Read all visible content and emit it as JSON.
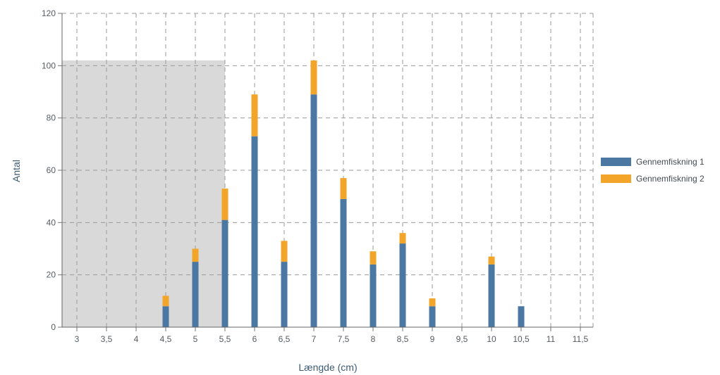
{
  "chart_data": {
    "type": "bar",
    "stacked": true,
    "xlabel": "Længde (cm)",
    "ylabel": "Antal",
    "categories": [
      "3",
      "3,5",
      "4",
      "4,5",
      "5",
      "5,5",
      "6",
      "6,5",
      "7",
      "7,5",
      "8",
      "8,5",
      "9",
      "9,5",
      "10",
      "10,5",
      "11",
      "11,5"
    ],
    "series": [
      {
        "name": "Gennemfiskning 1",
        "color": "#4a78a3",
        "values": [
          0,
          0,
          0,
          8,
          25,
          41,
          73,
          25,
          89,
          49,
          24,
          32,
          8,
          0,
          24,
          8,
          0,
          0
        ]
      },
      {
        "name": "Gennemfiskning 2",
        "color": "#f2a529",
        "values": [
          0,
          0,
          0,
          4,
          5,
          12,
          16,
          8,
          13,
          8,
          5,
          4,
          3,
          0,
          3,
          0,
          0,
          0
        ]
      }
    ],
    "ylim": [
      0,
      120
    ],
    "yticks": [
      0,
      20,
      40,
      60,
      80,
      100,
      120
    ],
    "grid": true,
    "legend_position": "right",
    "shaded_region": {
      "x_from": "2,5",
      "x_to": "5,5",
      "y_to": 102,
      "color": "#d9d9d9"
    }
  }
}
